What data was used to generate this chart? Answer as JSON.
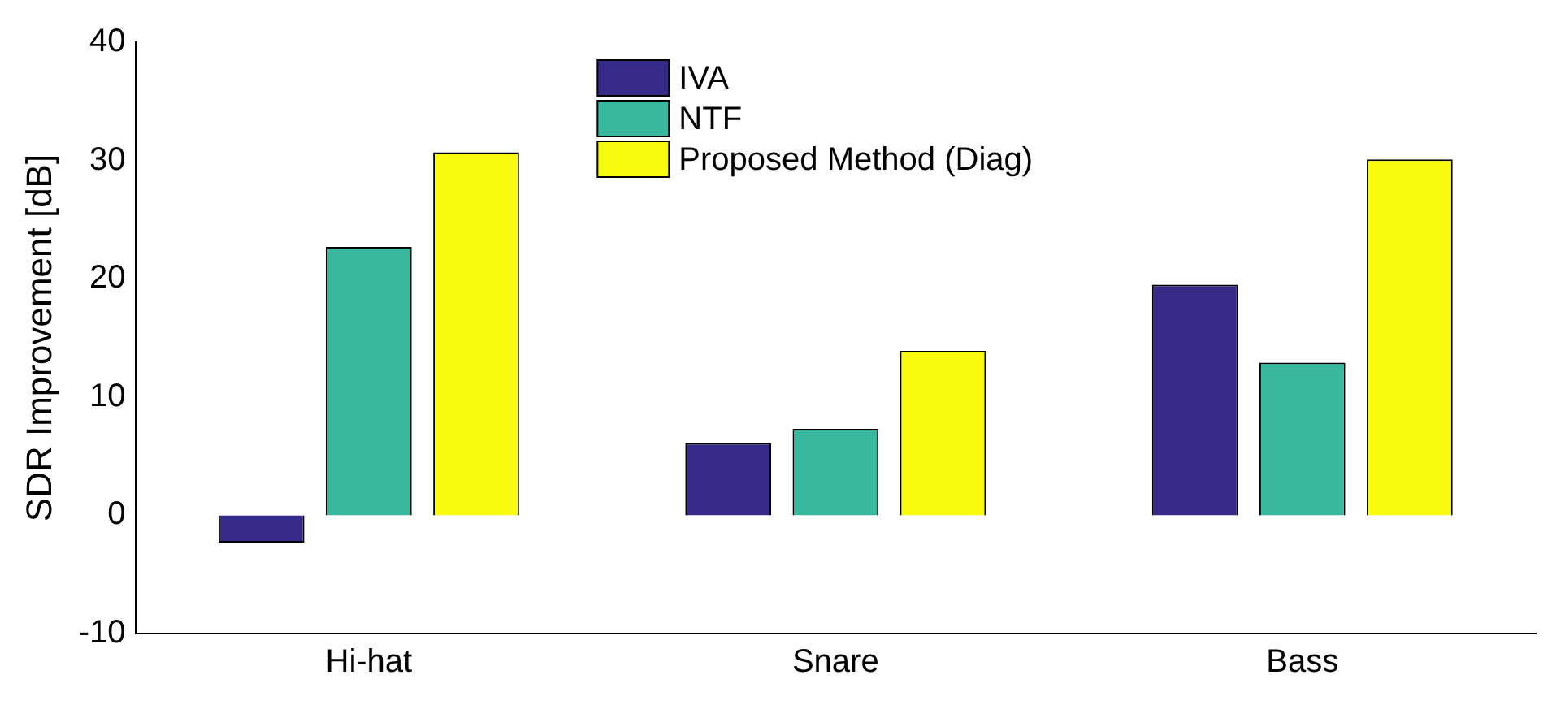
{
  "chart_data": {
    "type": "bar",
    "ylabel": "SDR Improvement [dB]",
    "categories": [
      "Hi-hat",
      "Snare",
      "Bass"
    ],
    "series": [
      {
        "name": "IVA",
        "color": "#352a87",
        "values": [
          -2.3,
          6.1,
          19.5
        ]
      },
      {
        "name": "NTF",
        "color": "#38b99e",
        "values": [
          22.7,
          7.3,
          12.9
        ]
      },
      {
        "name": "Proposed Method (Diag)",
        "color": "#f9fb0e",
        "values": [
          30.7,
          13.9,
          30.1
        ]
      }
    ],
    "ylim": [
      -10,
      40
    ],
    "yticks": [
      -10,
      0,
      10,
      20,
      30,
      40
    ],
    "grid": false,
    "legend": "top"
  }
}
